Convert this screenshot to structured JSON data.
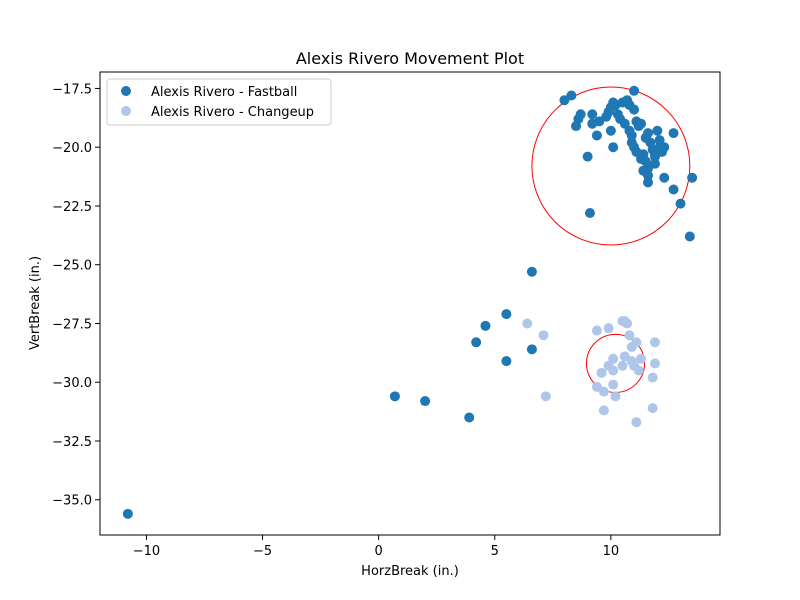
{
  "chart_data": {
    "type": "scatter",
    "title": "Alexis Rivero Movement Plot",
    "xlabel": "HorzBreak (in.)",
    "ylabel": "VertBreak (in.)",
    "xlim": [
      -12,
      14.7
    ],
    "ylim": [
      -36.5,
      -16.8
    ],
    "xticks": [
      -10,
      -5,
      0,
      5,
      10
    ],
    "xtick_labels": [
      "−10",
      "−5",
      "0",
      "5",
      "10"
    ],
    "yticks": [
      -17.5,
      -20.0,
      -22.5,
      -25.0,
      -27.5,
      -30.0,
      -32.5,
      -35.0
    ],
    "ytick_labels": [
      "−17.5",
      "−20.0",
      "−22.5",
      "−25.0",
      "−27.5",
      "−30.0",
      "−32.5",
      "−35.0"
    ],
    "grid": false,
    "legend_position": "top-left",
    "series": [
      {
        "name": "Alexis Rivero - Fastball",
        "color": "#1f77b4",
        "points": [
          [
            8.3,
            -17.8
          ],
          [
            8.0,
            -18.0
          ],
          [
            8.7,
            -18.6
          ],
          [
            8.6,
            -18.8
          ],
          [
            8.5,
            -19.1
          ],
          [
            9.2,
            -18.6
          ],
          [
            9.2,
            -19.0
          ],
          [
            9.5,
            -18.9
          ],
          [
            9.4,
            -19.5
          ],
          [
            9.9,
            -18.5
          ],
          [
            9.8,
            -18.7
          ],
          [
            10.1,
            -18.1
          ],
          [
            10.0,
            -18.3
          ],
          [
            10.2,
            -18.2
          ],
          [
            10.3,
            -18.6
          ],
          [
            10.5,
            -18.1
          ],
          [
            10.4,
            -18.8
          ],
          [
            10.6,
            -19.0
          ],
          [
            10.7,
            -18.0
          ],
          [
            10.8,
            -18.2
          ],
          [
            11.0,
            -17.6
          ],
          [
            11.0,
            -18.4
          ],
          [
            11.1,
            -18.9
          ],
          [
            11.2,
            -19.1
          ],
          [
            11.3,
            -19.0
          ],
          [
            10.0,
            -19.3
          ],
          [
            10.1,
            -20.0
          ],
          [
            10.9,
            -19.5
          ],
          [
            10.9,
            -19.8
          ],
          [
            10.8,
            -19.3
          ],
          [
            11.0,
            -20.0
          ],
          [
            11.1,
            -20.2
          ],
          [
            11.3,
            -20.5
          ],
          [
            11.4,
            -20.3
          ],
          [
            11.5,
            -20.6
          ],
          [
            11.5,
            -19.6
          ],
          [
            11.6,
            -19.4
          ],
          [
            11.7,
            -19.8
          ],
          [
            11.8,
            -20.1
          ],
          [
            11.9,
            -20.4
          ],
          [
            12.0,
            -19.3
          ],
          [
            12.1,
            -20.0
          ],
          [
            12.1,
            -19.7
          ],
          [
            12.2,
            -20.2
          ],
          [
            12.3,
            -20.0
          ],
          [
            11.9,
            -20.7
          ],
          [
            11.6,
            -20.9
          ],
          [
            11.4,
            -21.0
          ],
          [
            11.6,
            -21.2
          ],
          [
            11.6,
            -21.5
          ],
          [
            11.9,
            -20.3
          ],
          [
            12.7,
            -19.4
          ],
          [
            12.3,
            -21.3
          ],
          [
            12.7,
            -21.8
          ],
          [
            13.0,
            -22.4
          ],
          [
            13.5,
            -21.3
          ],
          [
            13.4,
            -23.8
          ],
          [
            9.0,
            -20.4
          ],
          [
            9.1,
            -22.8
          ],
          [
            6.6,
            -25.3
          ],
          [
            5.5,
            -27.1
          ],
          [
            4.6,
            -27.6
          ],
          [
            4.2,
            -28.3
          ],
          [
            6.6,
            -28.6
          ],
          [
            5.5,
            -29.1
          ],
          [
            0.7,
            -30.6
          ],
          [
            2.0,
            -30.8
          ],
          [
            3.9,
            -31.5
          ],
          [
            -10.8,
            -35.6
          ]
        ]
      },
      {
        "name": "Alexis Rivero - Changeup",
        "color": "#aec7e8",
        "points": [
          [
            6.4,
            -27.5
          ],
          [
            7.1,
            -28.0
          ],
          [
            9.4,
            -27.8
          ],
          [
            9.9,
            -27.7
          ],
          [
            10.5,
            -27.4
          ],
          [
            10.7,
            -27.5
          ],
          [
            10.6,
            -27.4
          ],
          [
            10.8,
            -28.0
          ],
          [
            11.1,
            -28.3
          ],
          [
            10.9,
            -28.5
          ],
          [
            11.9,
            -28.3
          ],
          [
            10.1,
            -29.0
          ],
          [
            10.6,
            -28.9
          ],
          [
            10.9,
            -29.1
          ],
          [
            11.3,
            -29.0
          ],
          [
            11.9,
            -29.2
          ],
          [
            9.9,
            -29.3
          ],
          [
            10.1,
            -29.5
          ],
          [
            10.5,
            -29.3
          ],
          [
            11.0,
            -29.3
          ],
          [
            11.2,
            -29.5
          ],
          [
            9.6,
            -29.6
          ],
          [
            11.8,
            -29.8
          ],
          [
            10.1,
            -30.1
          ],
          [
            9.4,
            -30.2
          ],
          [
            9.7,
            -30.4
          ],
          [
            10.2,
            -30.6
          ],
          [
            7.2,
            -30.6
          ],
          [
            9.7,
            -31.2
          ],
          [
            11.8,
            -31.1
          ],
          [
            11.1,
            -31.7
          ]
        ]
      }
    ],
    "annotations": [
      {
        "type": "circle",
        "color": "#ff0000",
        "center": [
          10.0,
          -20.8
        ],
        "radius_data_x": 3.4
      },
      {
        "type": "circle",
        "color": "#ff0000",
        "center": [
          10.2,
          -29.2
        ],
        "radius_data_x": 1.25
      }
    ]
  }
}
